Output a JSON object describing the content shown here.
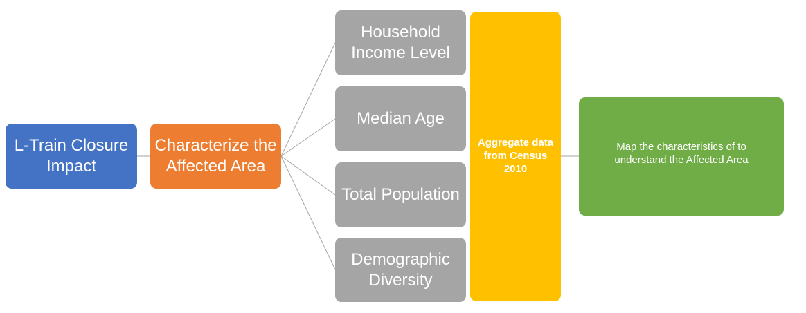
{
  "diagram": {
    "root": {
      "label": "L-Train Closure Impact"
    },
    "branch": {
      "label": "Characterize the Affected Area"
    },
    "factors": [
      {
        "label": "Household Income Level"
      },
      {
        "label": "Median Age"
      },
      {
        "label": "Total Population"
      },
      {
        "label": "Demographic Diversity"
      }
    ],
    "aggregate": {
      "label": "Aggregate data from Census 2010"
    },
    "outcome": {
      "label": "Map the characteristics of to understand the Affected Area"
    }
  },
  "colors": {
    "root": "#4472C4",
    "branch": "#ED7D31",
    "factor": "#A5A5A5",
    "aggregate": "#FFC000",
    "outcome": "#70AD47",
    "connector": "#A5A5A5"
  }
}
